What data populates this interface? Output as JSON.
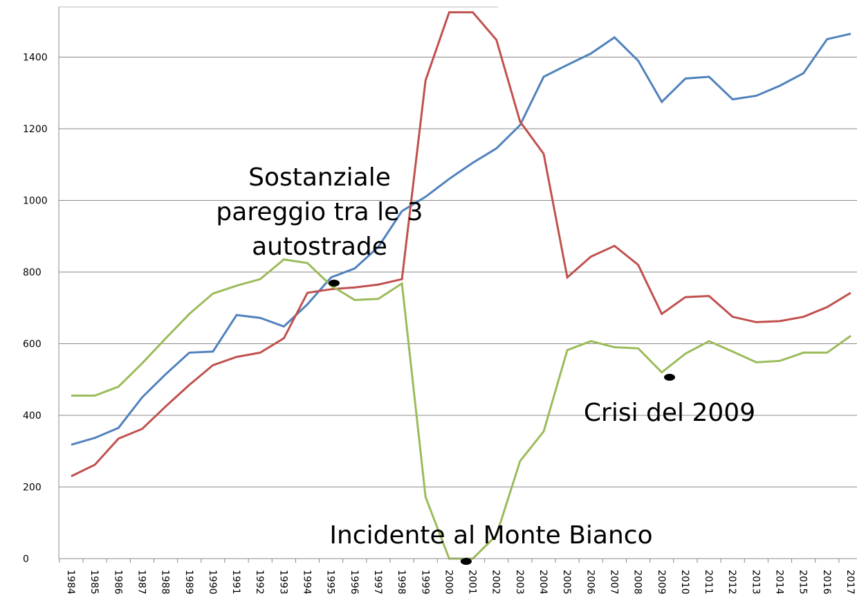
{
  "chart_data": {
    "type": "line",
    "categories": [
      "1984",
      "1985",
      "1986",
      "1987",
      "1988",
      "1989",
      "1990",
      "1991",
      "1992",
      "1993",
      "1994",
      "1995",
      "1996",
      "1997",
      "1998",
      "1999",
      "2000",
      "2001",
      "2002",
      "2003",
      "2004",
      "2005",
      "2006",
      "2007",
      "2008",
      "2009",
      "2010",
      "2011",
      "2012",
      "2013",
      "2014",
      "2015",
      "2016",
      "2017"
    ],
    "series": [
      {
        "color": "#4f81bd",
        "values": [
          318,
          337,
          365,
          450,
          515,
          575,
          578,
          680,
          672,
          648,
          710,
          785,
          810,
          870,
          970,
          1010,
          1060,
          1105,
          1145,
          1210,
          1345,
          1378,
          1410,
          1455,
          1390,
          1275,
          1340,
          1345,
          1282,
          1292,
          1320,
          1355,
          1450,
          1465
        ]
      },
      {
        "color": "#c0504d",
        "values": [
          230,
          262,
          335,
          362,
          425,
          485,
          540,
          563,
          575,
          615,
          742,
          752,
          757,
          765,
          780,
          1335,
          1525,
          1525,
          1448,
          1220,
          1130,
          785,
          843,
          873,
          820,
          683,
          730,
          733,
          675,
          660,
          663,
          675,
          702,
          742
        ]
      },
      {
        "color": "#9bbb59",
        "values": [
          455,
          455,
          480,
          545,
          615,
          683,
          740,
          762,
          780,
          835,
          825,
          762,
          722,
          725,
          768,
          172,
          0,
          0,
          65,
          272,
          355,
          582,
          607,
          590,
          587,
          520,
          572,
          607,
          578,
          548,
          552,
          575,
          575,
          622
        ]
      }
    ],
    "ylim": [
      0,
      1540
    ],
    "yticks": [
      0,
      200,
      400,
      600,
      800,
      1000,
      1200,
      1400
    ],
    "grid": true,
    "annotations": [
      "Sostanziale",
      "pareggio tra le 3",
      "autostrade",
      "Crisi del 2009",
      "Incidente al Monte Bianco"
    ]
  }
}
